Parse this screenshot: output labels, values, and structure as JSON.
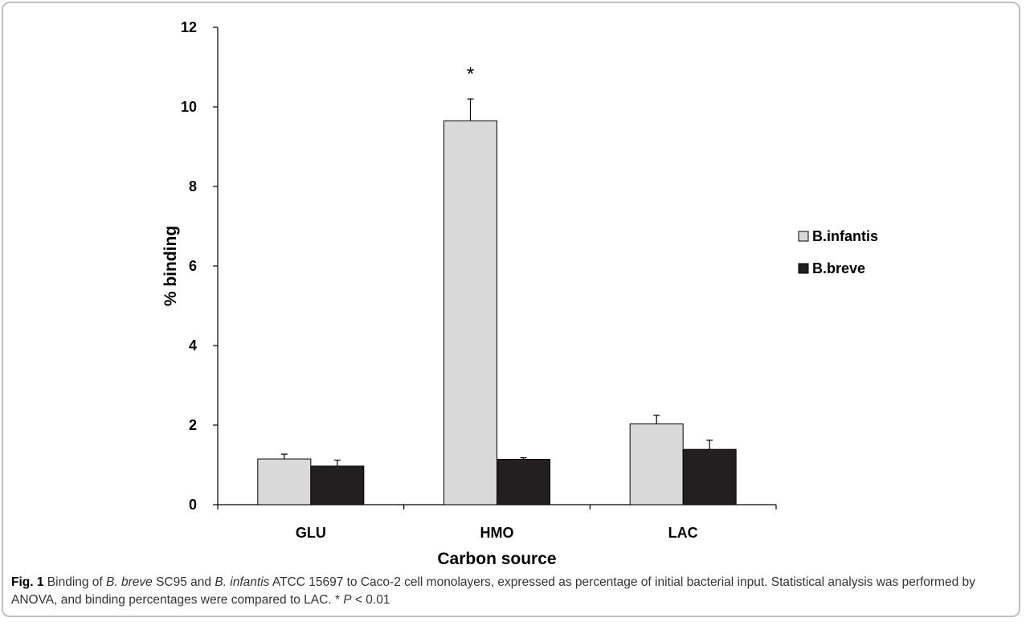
{
  "chart_data": {
    "type": "bar",
    "categories": [
      "GLU",
      "HMO",
      "LAC"
    ],
    "series": [
      {
        "name": "B.infantis",
        "values": [
          1.15,
          9.65,
          2.03
        ],
        "errors": [
          0.12,
          0.55,
          0.22
        ],
        "color": "#d9d9d9"
      },
      {
        "name": "B.breve",
        "values": [
          0.97,
          1.14,
          1.39
        ],
        "errors": [
          0.15,
          0.04,
          0.23
        ],
        "color": "#231f20"
      }
    ],
    "annotations": [
      {
        "text": "*",
        "category": "HMO",
        "series": "B.infantis",
        "y": 10.95
      }
    ],
    "xlabel": "Carbon source",
    "ylabel": "% binding",
    "ylim": [
      0,
      12
    ],
    "yticks": [
      0,
      2,
      4,
      6,
      8,
      10,
      12
    ],
    "grid": false,
    "legend_position": "right"
  },
  "caption": {
    "label": "Fig. 1",
    "parts": [
      {
        "text": " Binding of ",
        "italic": false
      },
      {
        "text": "B. breve",
        "italic": true
      },
      {
        "text": " SC95 and ",
        "italic": false
      },
      {
        "text": "B. infantis",
        "italic": true
      },
      {
        "text": " ATCC 15697 to Caco-2 cell monolayers, expressed as percentage of initial bacterial input. Statistical analysis was performed by ANOVA, and binding percentages were compared to LAC. * ",
        "italic": false
      },
      {
        "text": "P",
        "italic": true
      },
      {
        "text": " < 0.01",
        "italic": false
      }
    ]
  }
}
